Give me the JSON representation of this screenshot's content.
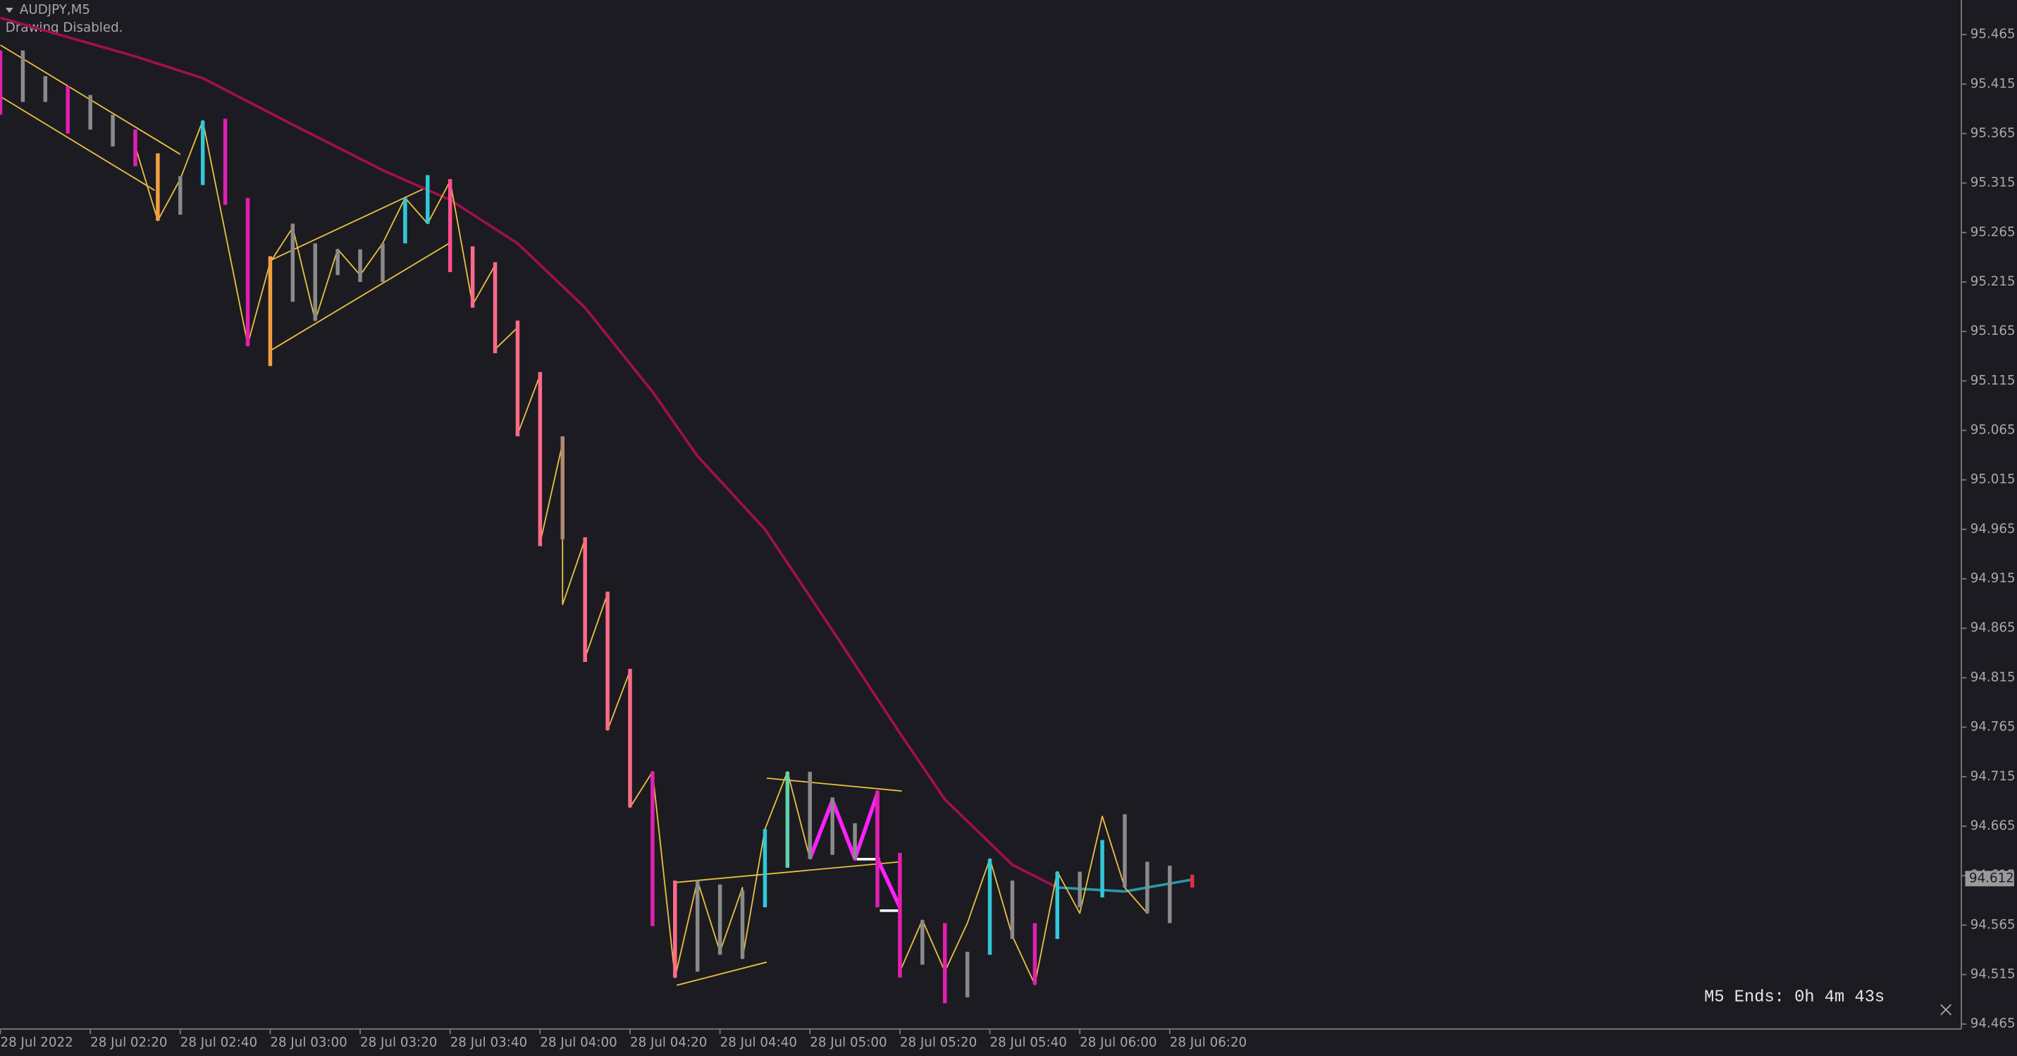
{
  "chart_data": {
    "type": "candlestick",
    "title": "AUDJPY,M5",
    "subtitle": "Drawing Disabled.",
    "timer": "M5 Ends: 0h 4m 43s",
    "last_price": 94.612,
    "last_price_color": "#9a9a9a",
    "background": "#1c1b21",
    "xlim": [
      0,
      436
    ],
    "ylim": [
      94.46,
      95.5
    ],
    "xticks": [
      {
        "value": 0,
        "label": "28 Jul 2022"
      },
      {
        "value": 20,
        "label": "28 Jul 02:20"
      },
      {
        "value": 40,
        "label": "28 Jul 02:40"
      },
      {
        "value": 60,
        "label": "28 Jul 03:00"
      },
      {
        "value": 80,
        "label": "28 Jul 03:20"
      },
      {
        "value": 100,
        "label": "28 Jul 03:40"
      },
      {
        "value": 120,
        "label": "28 Jul 04:00"
      },
      {
        "value": 140,
        "label": "28 Jul 04:20"
      },
      {
        "value": 160,
        "label": "28 Jul 04:40"
      },
      {
        "value": 180,
        "label": "28 Jul 05:00"
      },
      {
        "value": 200,
        "label": "28 Jul 05:20"
      },
      {
        "value": 220,
        "label": "28 Jul 05:40"
      },
      {
        "value": 240,
        "label": "28 Jul 06:00"
      },
      {
        "value": 260,
        "label": "28 Jul 06:20"
      }
    ],
    "yticks": [
      94.465,
      94.515,
      94.565,
      94.615,
      94.665,
      94.715,
      94.765,
      94.815,
      94.865,
      94.915,
      94.965,
      95.015,
      95.065,
      95.115,
      95.165,
      95.215,
      95.265,
      95.315,
      95.365,
      95.415,
      95.465
    ],
    "bars": {
      "x": [
        0,
        5,
        10,
        15,
        20,
        25,
        30,
        35,
        40,
        45,
        50,
        55,
        60,
        65,
        70,
        75,
        80,
        85,
        90,
        95,
        100,
        105,
        110,
        115,
        120,
        125,
        130,
        135,
        140,
        145,
        150,
        155,
        160,
        165,
        170,
        175,
        180,
        185,
        190,
        195,
        200,
        205,
        210,
        215,
        220,
        225,
        230,
        235,
        240,
        245,
        250,
        255,
        260,
        265
      ],
      "high": [
        95.449,
        95.449,
        95.423,
        95.413,
        95.404,
        95.384,
        95.369,
        95.345,
        95.322,
        95.378,
        95.38,
        95.3,
        95.241,
        95.274,
        95.254,
        95.248,
        95.248,
        95.254,
        95.3,
        95.323,
        95.319,
        95.251,
        95.235,
        95.176,
        95.124,
        95.059,
        94.957,
        94.902,
        94.824,
        94.72,
        94.61,
        94.61,
        94.606,
        94.6,
        94.662,
        94.72,
        94.72,
        94.694,
        94.668,
        94.701,
        94.638,
        94.57,
        94.567,
        94.538,
        94.632,
        94.61,
        94.567,
        94.619,
        94.619,
        94.651,
        94.677,
        94.629,
        94.625,
        94.616
      ],
      "low": [
        95.384,
        95.397,
        95.397,
        95.365,
        95.369,
        95.352,
        95.332,
        95.277,
        95.283,
        95.313,
        95.293,
        95.15,
        95.13,
        95.195,
        95.176,
        95.222,
        95.215,
        95.215,
        95.254,
        95.274,
        95.225,
        95.189,
        95.143,
        95.059,
        94.948,
        94.955,
        94.831,
        94.762,
        94.684,
        94.564,
        94.512,
        94.518,
        94.535,
        94.531,
        94.583,
        94.623,
        94.632,
        94.636,
        94.632,
        94.583,
        94.512,
        94.525,
        94.486,
        94.492,
        94.535,
        94.551,
        94.505,
        94.551,
        94.583,
        94.593,
        94.603,
        94.577,
        94.567,
        94.603
      ],
      "colors": [
        "#e020b0",
        "#8a8a8a",
        "#8a8a8a",
        "#e020b0",
        "#8a8a8a",
        "#8a8a8a",
        "#e020b0",
        "#f0a040",
        "#8a8a8a",
        "#30c8d8",
        "#e020b0",
        "#e020b0",
        "#f0a040",
        "#8a8a8a",
        "#8a8a8a",
        "#8a8a8a",
        "#8a8a8a",
        "#8a8a8a",
        "#30c8d8",
        "#30c8d8",
        "#ff4f90",
        "#ff6a8a",
        "#ff6a8a",
        "#ff6a8a",
        "#ff6a8a",
        "#b08a70",
        "#ff6a8a",
        "#ff6a8a",
        "#ff6a8a",
        "#e020b0",
        "#ff6a8a",
        "#8a8a8a",
        "#8a8a8a",
        "#8a8a8a",
        "#30c8d8",
        "#60d0b0",
        "#8a8a8a",
        "#8a8a8a",
        "#8a8a8a",
        "#e020b0",
        "#e020b0",
        "#8a8a8a",
        "#e020b0",
        "#8a8a8a",
        "#30c8d8",
        "#8a8a8a",
        "#e020b0",
        "#30c8d8",
        "#8a8a8a",
        "#30c8d8",
        "#8a8a8a",
        "#8a8a8a",
        "#8a8a8a",
        "#e03040"
      ]
    },
    "lines": [
      {
        "color": "#a0104e",
        "width": 2,
        "x": [
          0,
          30,
          45,
          65,
          85,
          100,
          115,
          130,
          145,
          155,
          170,
          185,
          200,
          210,
          225,
          235
        ],
        "values": [
          95.482,
          95.443,
          95.421,
          95.374,
          95.328,
          95.298,
          95.254,
          95.189,
          95.104,
          95.039,
          94.965,
          94.863,
          94.759,
          94.692,
          94.626,
          94.603
        ]
      },
      {
        "color": "#2a98a8",
        "width": 2,
        "x": [
          235,
          250,
          265
        ],
        "values": [
          94.603,
          94.599,
          94.611
        ]
      },
      {
        "color": "#e8c040",
        "width": 1,
        "x": [
          30,
          35,
          40,
          45,
          55,
          60,
          65,
          70,
          75,
          80,
          85,
          90,
          95,
          100,
          105,
          110,
          110,
          115,
          115,
          120,
          120,
          125,
          125,
          130,
          130,
          135,
          135,
          140,
          140,
          145,
          150,
          155,
          160,
          165,
          165,
          170,
          175,
          180,
          185,
          190,
          195,
          195,
          200,
          200,
          205,
          210,
          215,
          220,
          225,
          230,
          235,
          240,
          245,
          250,
          255,
          255
        ],
        "values": [
          95.352,
          95.277,
          95.319,
          95.378,
          95.152,
          95.235,
          95.27,
          95.176,
          95.248,
          95.222,
          95.254,
          95.3,
          95.274,
          95.317,
          95.192,
          95.232,
          95.147,
          95.169,
          95.061,
          95.121,
          94.951,
          95.052,
          94.889,
          94.955,
          94.835,
          94.9,
          94.762,
          94.822,
          94.684,
          94.72,
          94.512,
          94.61,
          94.538,
          94.603,
          94.531,
          94.662,
          94.72,
          94.632,
          94.691,
          94.632,
          94.698,
          94.632,
          94.583,
          94.518,
          94.57,
          94.518,
          94.567,
          94.632,
          94.554,
          94.505,
          94.619,
          94.577,
          94.675,
          94.603,
          94.577,
          94.627
        ]
      },
      {
        "color": "#ff20ff",
        "width": 3,
        "x": [
          180,
          185,
          190,
          195,
          195,
          200
        ],
        "values": [
          94.632,
          94.691,
          94.632,
          94.698,
          94.632,
          94.583
        ]
      }
    ]
  }
}
